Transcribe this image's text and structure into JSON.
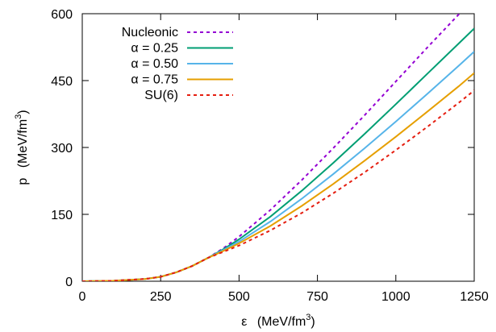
{
  "chart_data": {
    "type": "line",
    "xlabel": {
      "symbol": "ε",
      "unit_prefix": "(MeV/fm",
      "unit_exp": "3",
      "unit_suffix": ")"
    },
    "ylabel": {
      "symbol": "p",
      "unit_prefix": "(MeV/fm",
      "unit_exp": "3",
      "unit_suffix": ")"
    },
    "xlim": [
      0,
      1250
    ],
    "ylim": [
      0,
      600
    ],
    "xticks": [
      0,
      250,
      500,
      750,
      1000,
      1250
    ],
    "yticks": [
      0,
      150,
      300,
      450,
      600
    ],
    "grid": false,
    "legend_position": "top-left",
    "series": [
      {
        "name": "Nucleonic",
        "color": "#9400d3",
        "dash": "dashed",
        "x": [
          0,
          100,
          200,
          250,
          300,
          350,
          400,
          450,
          500,
          600,
          700,
          800,
          900,
          1000,
          1100,
          1200,
          1250
        ],
        "y": [
          0,
          1,
          5,
          10,
          20,
          34,
          52,
          74,
          100,
          160,
          227,
          298,
          372,
          448,
          524,
          598,
          630
        ]
      },
      {
        "name": "α = 0.25",
        "color": "#009e73",
        "dash": "solid",
        "x": [
          0,
          100,
          200,
          250,
          300,
          350,
          400,
          450,
          500,
          600,
          700,
          800,
          900,
          1000,
          1100,
          1200,
          1250
        ],
        "y": [
          0,
          1,
          5,
          10,
          20,
          34,
          52,
          72,
          94,
          145,
          203,
          265,
          330,
          397,
          465,
          533,
          567
        ]
      },
      {
        "name": "α = 0.50",
        "color": "#56b4e9",
        "dash": "solid",
        "x": [
          0,
          100,
          200,
          250,
          300,
          350,
          400,
          450,
          500,
          600,
          700,
          800,
          900,
          1000,
          1100,
          1200,
          1250
        ],
        "y": [
          0,
          1,
          5,
          10,
          20,
          34,
          52,
          70,
          89,
          134,
          185,
          240,
          298,
          358,
          420,
          483,
          515
        ]
      },
      {
        "name": "α = 0.75",
        "color": "#e69f00",
        "dash": "solid",
        "x": [
          0,
          100,
          200,
          250,
          300,
          350,
          400,
          450,
          500,
          600,
          700,
          800,
          900,
          1000,
          1100,
          1200,
          1250
        ],
        "y": [
          0,
          1,
          5,
          10,
          20,
          34,
          52,
          68,
          85,
          124,
          169,
          218,
          270,
          324,
          380,
          437,
          467
        ]
      },
      {
        "name": "SU(6)",
        "color": "#e51e10",
        "dash": "dashed",
        "x": [
          0,
          100,
          200,
          250,
          300,
          350,
          400,
          450,
          500,
          600,
          700,
          800,
          900,
          1000,
          1100,
          1200,
          1250
        ],
        "y": [
          0,
          1,
          5,
          10,
          20,
          34,
          52,
          66,
          80,
          114,
          153,
          197,
          244,
          294,
          346,
          400,
          428
        ]
      }
    ]
  }
}
